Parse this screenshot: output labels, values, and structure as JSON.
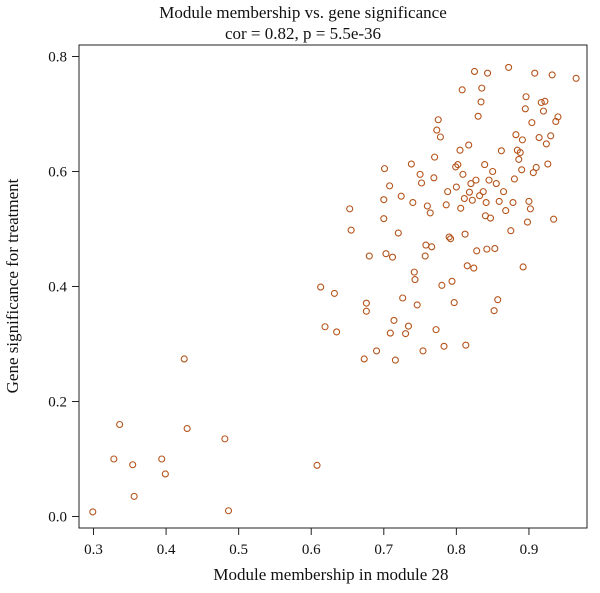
{
  "chart_data": {
    "type": "scatter",
    "title": "Module membership vs. gene significance",
    "subtitle": "cor = 0.82, p = 5.5e-36",
    "xlabel": "Module membership in module 28",
    "ylabel": "Gene significance for treatment",
    "xlim": [
      0.28,
      0.98
    ],
    "ylim": [
      -0.02,
      0.82
    ],
    "xticks": [
      "0.3",
      "0.4",
      "0.5",
      "0.6",
      "0.7",
      "0.8",
      "0.9"
    ],
    "yticks": [
      "0.0",
      "0.2",
      "0.4",
      "0.6",
      "0.8"
    ],
    "grid": false,
    "point_color": "#b5541b",
    "points": [
      [
        0.299,
        0.008
      ],
      [
        0.328,
        0.1
      ],
      [
        0.336,
        0.16
      ],
      [
        0.354,
        0.09
      ],
      [
        0.356,
        0.035
      ],
      [
        0.394,
        0.1
      ],
      [
        0.399,
        0.074
      ],
      [
        0.425,
        0.274
      ],
      [
        0.429,
        0.153
      ],
      [
        0.481,
        0.135
      ],
      [
        0.486,
        0.01
      ],
      [
        0.608,
        0.089
      ],
      [
        0.613,
        0.399
      ],
      [
        0.619,
        0.33
      ],
      [
        0.632,
        0.388
      ],
      [
        0.635,
        0.321
      ],
      [
        0.653,
        0.535
      ],
      [
        0.655,
        0.498
      ],
      [
        0.673,
        0.274
      ],
      [
        0.676,
        0.371
      ],
      [
        0.676,
        0.357
      ],
      [
        0.68,
        0.453
      ],
      [
        0.69,
        0.288
      ],
      [
        0.7,
        0.551
      ],
      [
        0.7,
        0.518
      ],
      [
        0.701,
        0.605
      ],
      [
        0.703,
        0.457
      ],
      [
        0.708,
        0.575
      ],
      [
        0.709,
        0.319
      ],
      [
        0.712,
        0.451
      ],
      [
        0.714,
        0.341
      ],
      [
        0.716,
        0.272
      ],
      [
        0.72,
        0.493
      ],
      [
        0.724,
        0.557
      ],
      [
        0.726,
        0.38
      ],
      [
        0.73,
        0.318
      ],
      [
        0.734,
        0.331
      ],
      [
        0.738,
        0.613
      ],
      [
        0.74,
        0.546
      ],
      [
        0.742,
        0.425
      ],
      [
        0.743,
        0.412
      ],
      [
        0.746,
        0.368
      ],
      [
        0.75,
        0.595
      ],
      [
        0.752,
        0.58
      ],
      [
        0.754,
        0.288
      ],
      [
        0.757,
        0.453
      ],
      [
        0.758,
        0.472
      ],
      [
        0.76,
        0.54
      ],
      [
        0.764,
        0.528
      ],
      [
        0.766,
        0.469
      ],
      [
        0.769,
        0.589
      ],
      [
        0.77,
        0.625
      ],
      [
        0.772,
        0.325
      ],
      [
        0.773,
        0.672
      ],
      [
        0.775,
        0.69
      ],
      [
        0.778,
        0.66
      ],
      [
        0.78,
        0.402
      ],
      [
        0.783,
        0.296
      ],
      [
        0.786,
        0.542
      ],
      [
        0.788,
        0.565
      ],
      [
        0.79,
        0.486
      ],
      [
        0.792,
        0.483
      ],
      [
        0.794,
        0.409
      ],
      [
        0.797,
        0.372
      ],
      [
        0.799,
        0.608
      ],
      [
        0.8,
        0.573
      ],
      [
        0.802,
        0.612
      ],
      [
        0.805,
        0.637
      ],
      [
        0.806,
        0.536
      ],
      [
        0.808,
        0.742
      ],
      [
        0.809,
        0.595
      ],
      [
        0.811,
        0.553
      ],
      [
        0.812,
        0.491
      ],
      [
        0.813,
        0.298
      ],
      [
        0.815,
        0.436
      ],
      [
        0.817,
        0.646
      ],
      [
        0.818,
        0.564
      ],
      [
        0.82,
        0.579
      ],
      [
        0.822,
        0.55
      ],
      [
        0.824,
        0.432
      ],
      [
        0.825,
        0.774
      ],
      [
        0.827,
        0.585
      ],
      [
        0.828,
        0.462
      ],
      [
        0.83,
        0.696
      ],
      [
        0.832,
        0.558
      ],
      [
        0.834,
        0.721
      ],
      [
        0.835,
        0.745
      ],
      [
        0.837,
        0.565
      ],
      [
        0.839,
        0.612
      ],
      [
        0.84,
        0.523
      ],
      [
        0.841,
        0.546
      ],
      [
        0.842,
        0.465
      ],
      [
        0.843,
        0.771
      ],
      [
        0.845,
        0.585
      ],
      [
        0.847,
        0.519
      ],
      [
        0.85,
        0.6
      ],
      [
        0.852,
        0.358
      ],
      [
        0.853,
        0.466
      ],
      [
        0.855,
        0.579
      ],
      [
        0.857,
        0.377
      ],
      [
        0.859,
        0.548
      ],
      [
        0.862,
        0.636
      ],
      [
        0.865,
        0.565
      ],
      [
        0.868,
        0.532
      ],
      [
        0.872,
        0.781
      ],
      [
        0.875,
        0.497
      ],
      [
        0.878,
        0.546
      ],
      [
        0.88,
        0.587
      ],
      [
        0.882,
        0.664
      ],
      [
        0.884,
        0.637
      ],
      [
        0.886,
        0.621
      ],
      [
        0.888,
        0.633
      ],
      [
        0.89,
        0.603
      ],
      [
        0.891,
        0.655
      ],
      [
        0.892,
        0.434
      ],
      [
        0.895,
        0.709
      ],
      [
        0.896,
        0.73
      ],
      [
        0.898,
        0.512
      ],
      [
        0.9,
        0.548
      ],
      [
        0.902,
        0.535
      ],
      [
        0.904,
        0.685
      ],
      [
        0.906,
        0.598
      ],
      [
        0.908,
        0.771
      ],
      [
        0.91,
        0.607
      ],
      [
        0.914,
        0.659
      ],
      [
        0.917,
        0.72
      ],
      [
        0.92,
        0.705
      ],
      [
        0.922,
        0.722
      ],
      [
        0.924,
        0.648
      ],
      [
        0.926,
        0.613
      ],
      [
        0.93,
        0.662
      ],
      [
        0.932,
        0.768
      ],
      [
        0.934,
        0.517
      ],
      [
        0.937,
        0.687
      ],
      [
        0.94,
        0.695
      ],
      [
        0.965,
        0.762
      ]
    ]
  }
}
